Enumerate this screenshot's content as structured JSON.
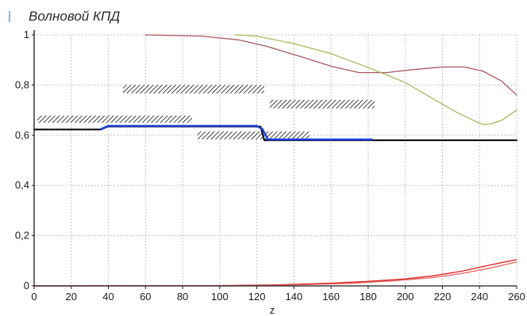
{
  "chart_data": {
    "type": "line",
    "title": "Волновой КПД",
    "xlabel": "z",
    "ylabel": "",
    "xlim": [
      0,
      260
    ],
    "ylim": [
      0,
      1
    ],
    "xticks": [
      0,
      20,
      40,
      60,
      80,
      100,
      120,
      140,
      160,
      180,
      200,
      220,
      240,
      260
    ],
    "yticks": [
      {
        "value": 0,
        "label": "0"
      },
      {
        "value": 0.2,
        "label": "0,2"
      },
      {
        "value": 0.4,
        "label": "0,4"
      },
      {
        "value": 0.6,
        "label": "0,6"
      },
      {
        "value": 0.8,
        "label": "0,8"
      },
      {
        "value": 1,
        "label": "1"
      }
    ],
    "grid": true,
    "series": [
      {
        "color": "#000000",
        "points": [
          [
            0,
            0.623
          ],
          [
            36,
            0.623
          ],
          [
            40,
            0.635
          ],
          [
            122,
            0.635
          ],
          [
            124,
            0.58
          ],
          [
            260,
            0.58
          ]
        ]
      },
      {
        "color": "#1f3fd8",
        "points": [
          [
            36,
            0.625
          ],
          [
            40,
            0.637
          ],
          [
            120,
            0.637
          ],
          [
            123,
            0.625
          ],
          [
            126,
            0.583
          ],
          [
            182,
            0.583
          ]
        ]
      },
      {
        "color": "#a85a60",
        "points": [
          [
            60,
            1.0
          ],
          [
            90,
            0.995
          ],
          [
            110,
            0.98
          ],
          [
            125,
            0.955
          ],
          [
            145,
            0.91
          ],
          [
            160,
            0.875
          ],
          [
            175,
            0.85
          ],
          [
            190,
            0.85
          ],
          [
            205,
            0.862
          ],
          [
            220,
            0.872
          ],
          [
            232,
            0.872
          ],
          [
            242,
            0.855
          ],
          [
            252,
            0.815
          ],
          [
            260,
            0.76
          ]
        ]
      },
      {
        "color": "#a8b85e",
        "points": [
          [
            108,
            1.0
          ],
          [
            120,
            0.995
          ],
          [
            140,
            0.965
          ],
          [
            160,
            0.925
          ],
          [
            180,
            0.87
          ],
          [
            200,
            0.81
          ],
          [
            215,
            0.745
          ],
          [
            228,
            0.69
          ],
          [
            238,
            0.655
          ],
          [
            242,
            0.643
          ],
          [
            246,
            0.645
          ],
          [
            252,
            0.66
          ],
          [
            260,
            0.7
          ]
        ]
      },
      {
        "color": "#d81e1e",
        "points": [
          [
            0,
            0.0
          ],
          [
            100,
            0.001
          ],
          [
            130,
            0.004
          ],
          [
            160,
            0.011
          ],
          [
            180,
            0.018
          ],
          [
            200,
            0.028
          ],
          [
            215,
            0.04
          ],
          [
            230,
            0.058
          ],
          [
            245,
            0.082
          ],
          [
            260,
            0.105
          ]
        ]
      },
      {
        "color": "#e86060",
        "points": [
          [
            0,
            0.0
          ],
          [
            110,
            0.001
          ],
          [
            140,
            0.004
          ],
          [
            170,
            0.01
          ],
          [
            195,
            0.021
          ],
          [
            215,
            0.033
          ],
          [
            230,
            0.049
          ],
          [
            245,
            0.07
          ],
          [
            260,
            0.095
          ]
        ]
      }
    ]
  }
}
